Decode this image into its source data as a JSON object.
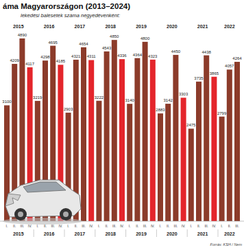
{
  "chart_data": {
    "type": "bar",
    "title": "áma Magyarországon (2013–2024)",
    "subtitle": "lekedési balesetek száma negyedévenként:",
    "source": "Forrás: KSH / Nem",
    "categories": [
      "I.",
      "II.",
      "III.",
      "IV.",
      "I.",
      "II.",
      "III.",
      "IV.",
      "I.",
      "II.",
      "III.",
      "IV.",
      "I.",
      "II.",
      "III.",
      "IV.",
      "I.",
      "II.",
      "III.",
      "IV.",
      "I.",
      "II.",
      "III.",
      "IV.",
      "I.",
      "II.",
      "III.",
      "IV.",
      "I.",
      "II.",
      "III."
    ],
    "years": [
      "2015",
      "2016",
      "2017",
      "2018",
      "2019",
      "2020",
      "2021",
      "2022"
    ],
    "values": [
      3100,
      4209,
      4890,
      4117,
      3219,
      4298,
      4695,
      4185,
      2903,
      4321,
      4654,
      4311,
      3222,
      4543,
      4850,
      4336,
      3140,
      4364,
      4800,
      4323,
      2883,
      3142,
      4450,
      3303,
      2475,
      3735,
      4438,
      3865,
      2799,
      4057,
      4264
    ],
    "colors": [
      "#8c3b2a",
      "#8c3b2a",
      "#8c3b2a",
      "#e4252b",
      "#8c3b2a",
      "#8c3b2a",
      "#8c3b2a",
      "#e4252b",
      "#8c3b2a",
      "#8c3b2a",
      "#8c3b2a",
      "#e4252b",
      "#8c3b2a",
      "#8c3b2a",
      "#8c3b2a",
      "#e4252b",
      "#8c3b2a",
      "#8c3b2a",
      "#8c3b2a",
      "#e4252b",
      "#8c3b2a",
      "#8c3b2a",
      "#8c3b2a",
      "#e4252b",
      "#8c3b2a",
      "#8c3b2a",
      "#8c3b2a",
      "#e4252b",
      "#8c3b2a",
      "#8c3b2a",
      "#8c3b2a"
    ],
    "ylim": [
      0,
      5000
    ],
    "data_labels": true,
    "tick_labels": "x",
    "grid": false
  }
}
